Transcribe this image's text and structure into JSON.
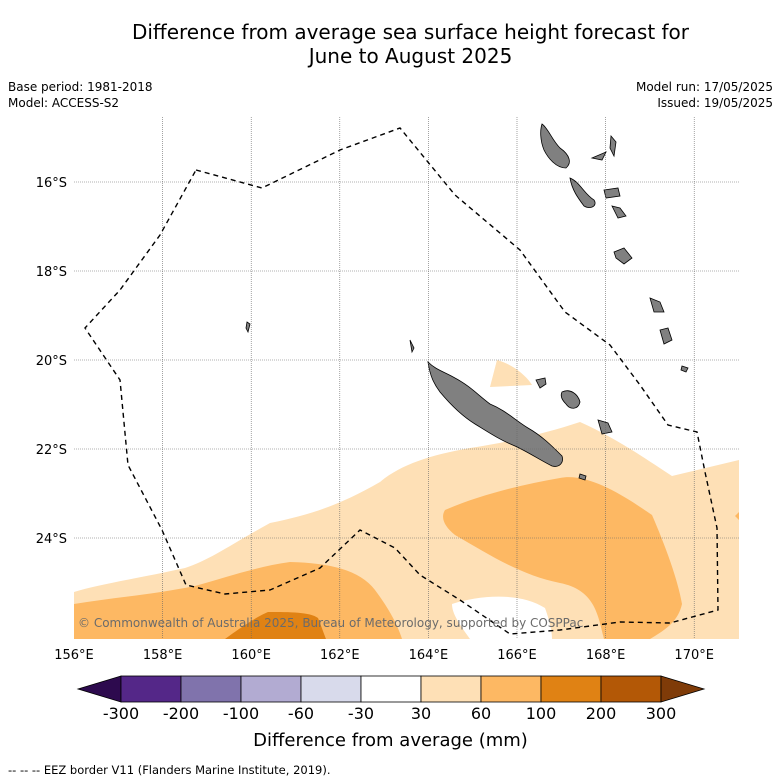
{
  "title_line1": "Difference from average sea surface height forecast for",
  "title_line2": "June to August 2025",
  "base_period": "Base period: 1981-2018",
  "model": "Model: ACCESS-S2",
  "model_run": "Model run: 17/05/2025",
  "issued": "Issued: 19/05/2025",
  "copyright": "© Commonwealth of Australia 2025, Bureau of Meteorology, supported by COSPPac",
  "lon_ticks": [
    "156°E",
    "158°E",
    "160°E",
    "162°E",
    "164°E",
    "166°E",
    "168°E",
    "170°E"
  ],
  "lat_ticks": [
    "16°S",
    "18°S",
    "20°S",
    "22°S",
    "24°S"
  ],
  "colorbar": {
    "labels": [
      "-300",
      "-200",
      "-100",
      "-60",
      "-30",
      "30",
      "60",
      "100",
      "200",
      "300"
    ],
    "colors": [
      "#2d0a4e",
      "#542788",
      "#8073ac",
      "#b2abd2",
      "#d8daeb",
      "#ffffff",
      "#fee0b6",
      "#fdb863",
      "#e08214",
      "#b35806",
      "#7f3b08"
    ],
    "title": "Difference from average (mm)"
  },
  "footer": "--  --  -- EEZ border V11 (Flanders Marine Institute, 2019).",
  "map_colors": {
    "land": "#808080",
    "class_30_60": "#fee0b6",
    "class_60_100": "#fdb863",
    "class_100_200": "#e08214"
  }
}
